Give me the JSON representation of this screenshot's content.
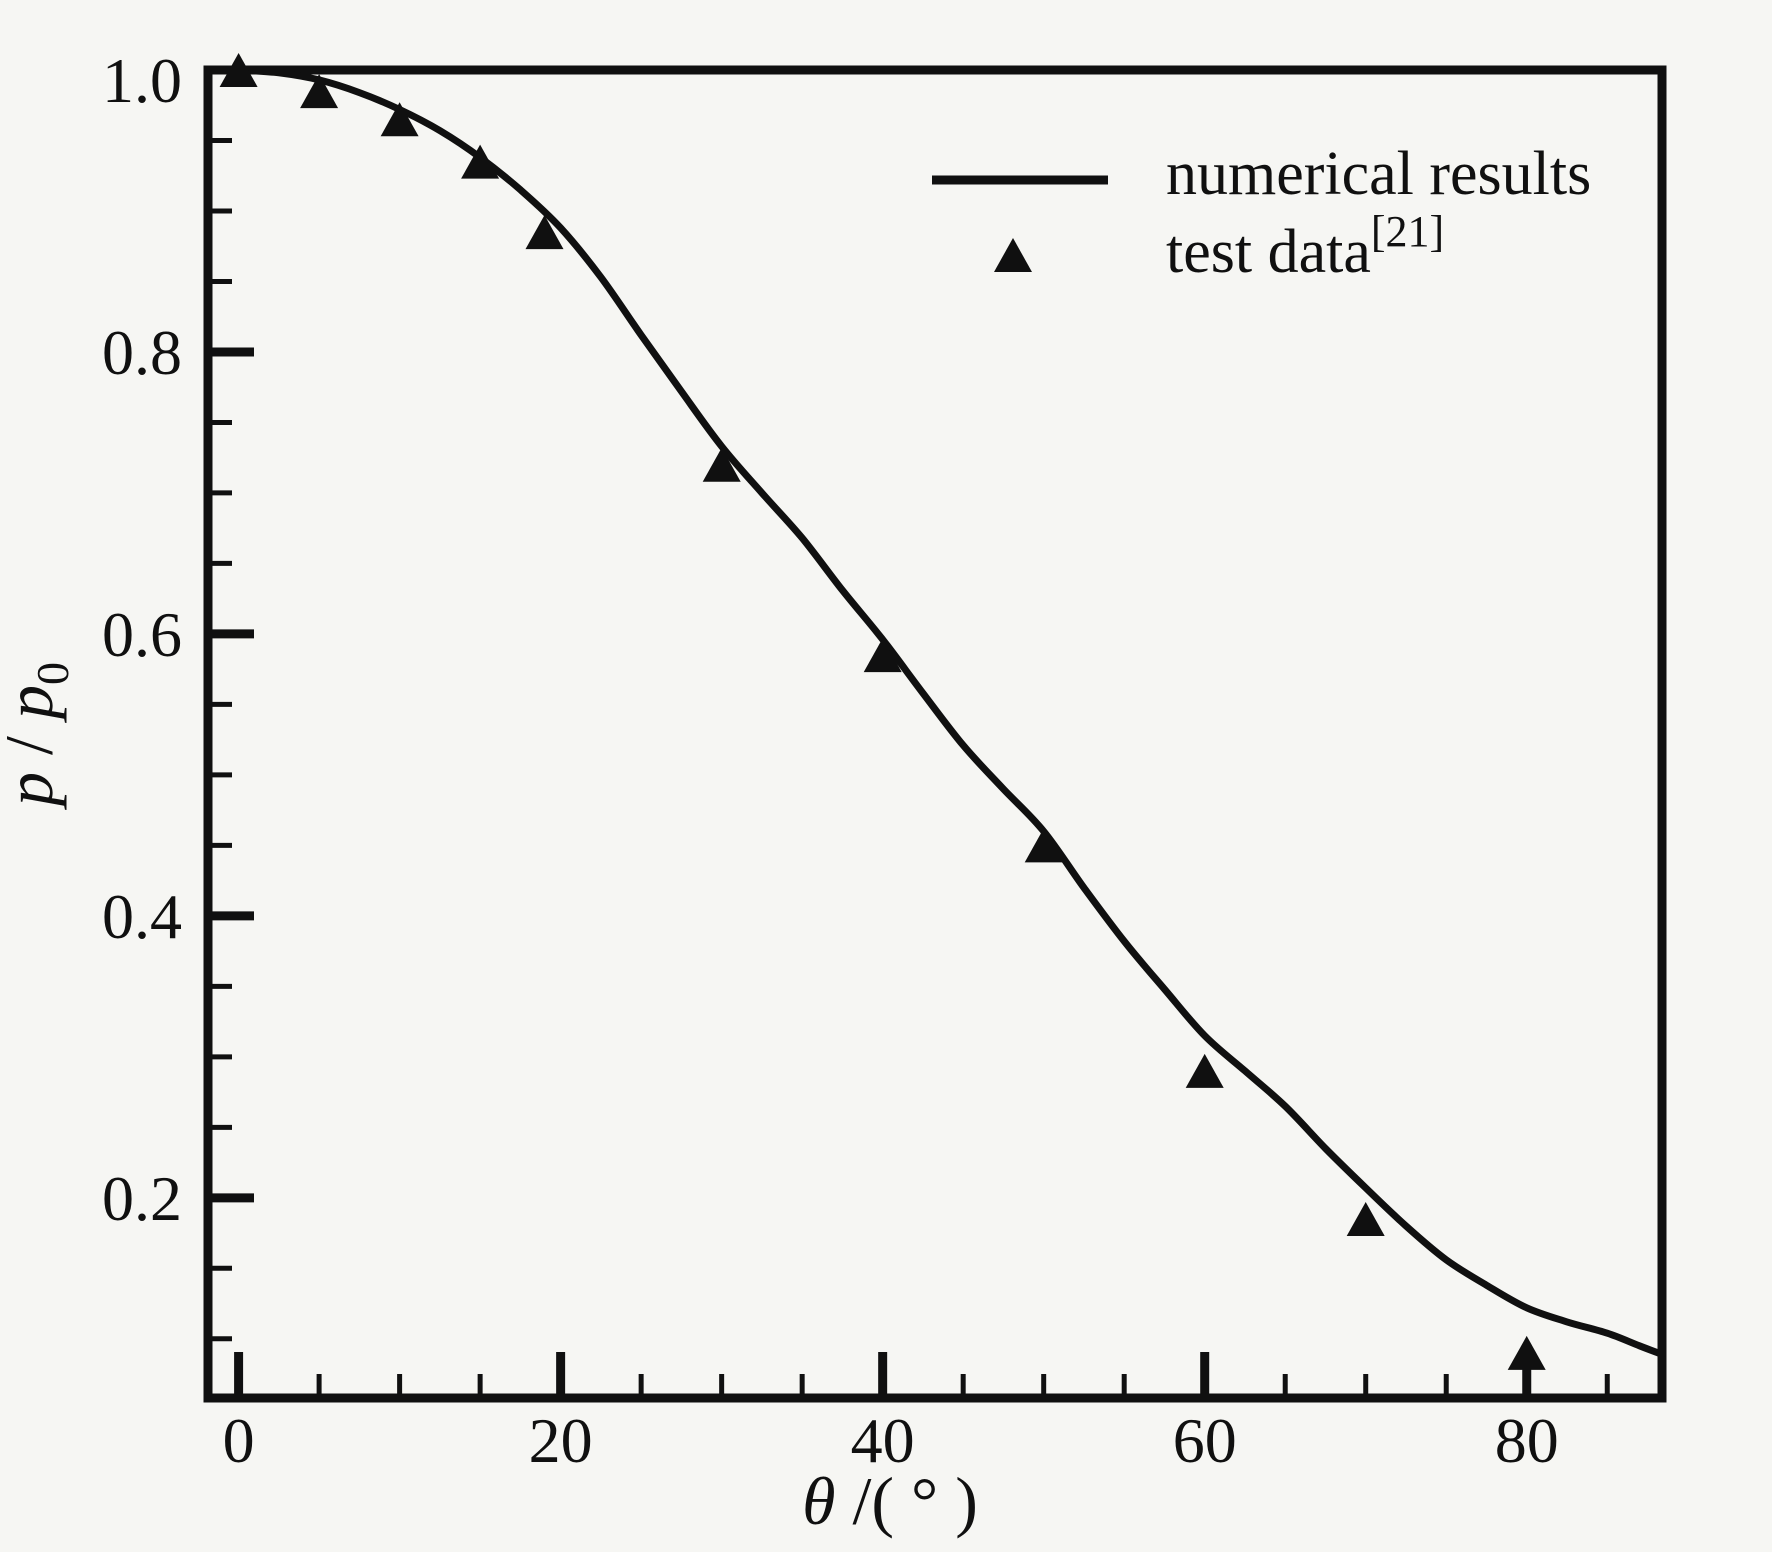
{
  "figure": {
    "background_color": "#f6f6f3",
    "ink_color": "#101010"
  },
  "chart_data": {
    "type": "line",
    "title": "",
    "xlabel": "θ /( ° )",
    "xlabel_symbol": "θ",
    "xlabel_rest": " /( ° )",
    "ylabel": "p / p0",
    "ylabel_symbol": "p",
    "ylabel_divider": " / ",
    "ylabel_symbol2": "p",
    "ylabel_subscript": "0",
    "xlim": [
      -1.9,
      88.4
    ],
    "ylim": [
      0.058,
      1.0
    ],
    "grid": false,
    "legend_position": "inside-top-right",
    "x_major_ticks": {
      "values": [
        0,
        20,
        40,
        60,
        80
      ],
      "labels": [
        "0",
        "20",
        "40",
        "60",
        "80"
      ]
    },
    "x_minor_tick_values": [
      5,
      10,
      15,
      25,
      30,
      35,
      45,
      50,
      55,
      65,
      70,
      75,
      85
    ],
    "y_major_ticks": {
      "values": [
        0.2,
        0.4,
        0.6,
        0.8,
        1.0
      ],
      "labels": [
        "0.2",
        "0.4",
        "0.6",
        "0.8",
        "1.0"
      ]
    },
    "y_minor_tick_values": [
      0.1,
      0.15,
      0.25,
      0.3,
      0.35,
      0.45,
      0.5,
      0.55,
      0.65,
      0.7,
      0.75,
      0.85,
      0.9,
      0.95
    ],
    "series": [
      {
        "name": "numerical results",
        "type": "line",
        "x": [
          0,
          2.5,
          5,
          7.5,
          10,
          12.5,
          15,
          17.5,
          20,
          22.5,
          25,
          27.5,
          30,
          32.5,
          35,
          37.5,
          40,
          42.5,
          45,
          47.5,
          50,
          52.5,
          55,
          57.5,
          60,
          62.5,
          65,
          67.5,
          70,
          72.5,
          75,
          77.5,
          80,
          82.5,
          85,
          87,
          88.4
        ],
        "y": [
          1.0,
          0.998,
          0.993,
          0.984,
          0.972,
          0.957,
          0.938,
          0.915,
          0.888,
          0.853,
          0.812,
          0.772,
          0.733,
          0.7,
          0.668,
          0.631,
          0.596,
          0.558,
          0.521,
          0.49,
          0.46,
          0.42,
          0.382,
          0.348,
          0.315,
          0.29,
          0.265,
          0.235,
          0.207,
          0.18,
          0.156,
          0.138,
          0.122,
          0.112,
          0.104,
          0.095,
          0.089
        ]
      },
      {
        "name": "test data",
        "name_superscript": "[21]",
        "type": "scatter",
        "marker": "triangle-up",
        "x": [
          0,
          5,
          10,
          15,
          19,
          30,
          40,
          50,
          60,
          70,
          80
        ],
        "y": [
          1.0,
          0.985,
          0.965,
          0.935,
          0.885,
          0.72,
          0.585,
          0.45,
          0.29,
          0.185,
          0.09
        ]
      }
    ]
  }
}
